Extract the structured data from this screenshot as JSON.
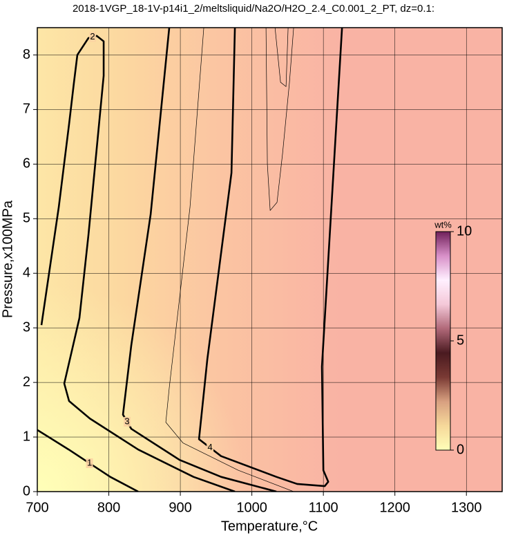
{
  "chart_data": {
    "type": "contour",
    "title": "2018-1VGP_18-1V-p14i1_2/meltsliquid/Na2O/H2O_2.4_C0.001_2_PT, dz=0.1:",
    "xlabel": "Temperature,°C",
    "ylabel": "Pressure,x100MPa",
    "xlim": [
      700,
      1350
    ],
    "ylim": [
      0,
      8.5
    ],
    "xticks": [
      700,
      800,
      900,
      1000,
      1100,
      1200,
      1300
    ],
    "yticks": [
      0,
      1,
      2,
      3,
      4,
      5,
      6,
      7,
      8
    ],
    "grid": true,
    "contours": [
      {
        "level": 1,
        "x": [
          700,
          744,
          802,
          841
        ],
        "y": [
          1.13,
          0.77,
          0.27,
          0
        ]
      },
      {
        "level": 2,
        "x": [
          705.8,
          730,
          744.4,
          751.2,
          756,
          771.5,
          783.1,
          792.8,
          792.8,
          771.5,
          758.9,
          737.7,
          744.4,
          773.4,
          841.1,
          918.4,
          976.3
        ],
        "y": [
          3.05,
          5.21,
          6.73,
          7.49,
          8.0,
          8.31,
          8.35,
          8.25,
          7.62,
          4.7,
          3.18,
          1.98,
          1.66,
          1.34,
          0.77,
          0.27,
          0
        ]
      },
      {
        "level": 3,
        "x": [
          884.5,
          858.5,
          831.4,
          819.8,
          831.4,
          899,
          957,
          1034.3
        ],
        "y": [
          8.5,
          5.08,
          2.68,
          1.41,
          1.15,
          0.58,
          0.27,
          0
        ]
      },
      {
        "level": 3.5,
        "x": [
          932.8,
          913.5,
          884.5,
          879.7,
          903.8,
          981.1,
          1058.4
        ],
        "y": [
          8.5,
          5.21,
          1.9,
          1.27,
          0.89,
          0.39,
          0
        ]
      },
      {
        "level": 4,
        "x": [
          976.3,
          971.5,
          937.7,
          926.1,
          957,
          1034.3,
          1063.3,
          1101.9,
          1106.8,
          1100,
          1098,
          1126.1
        ],
        "y": [
          8.5,
          5.84,
          2.42,
          0.96,
          0.65,
          0.27,
          0.14,
          0.1,
          0.18,
          0.39,
          2.29,
          8.5
        ]
      },
      {
        "level": 4.1,
        "x": [
          1019.8,
          1021.7,
          1025.6,
          1035.2,
          1043,
          1052.6,
          1058.4
        ],
        "y": [
          8.5,
          6.0,
          5.15,
          5.3,
          6.2,
          7.5,
          8.5
        ]
      },
      {
        "level": 4.2,
        "x": [
          1032.4,
          1040.1,
          1047.8,
          1050.7
        ],
        "y": [
          8.5,
          7.5,
          7.42,
          8.5
        ]
      }
    ],
    "colorbar": {
      "label": "wt%",
      "lim": [
        0,
        10
      ],
      "ticks": [
        0,
        5,
        10
      ],
      "colors": [
        "#ffffb8",
        "#f6d89a",
        "#d8a080",
        "#7a3a34",
        "#4a1a20",
        "#b06878",
        "#f4c8d8",
        "#fff0ff",
        "#d890c8",
        "#70205a"
      ]
    }
  }
}
